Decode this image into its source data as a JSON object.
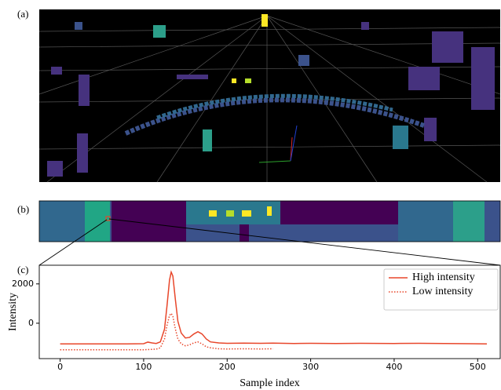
{
  "panels": {
    "a": "(a)",
    "b": "(b)",
    "c": "(c)"
  },
  "chart_data": {
    "type": "line",
    "xlabel": "Sample index",
    "ylabel": "Intensity",
    "x": [
      0,
      20,
      40,
      60,
      80,
      100,
      105,
      110,
      115,
      120,
      125,
      128,
      131,
      133,
      135,
      138,
      141,
      145,
      150,
      155,
      160,
      165,
      170,
      175,
      180,
      190,
      200,
      220,
      240,
      255,
      280,
      300,
      330,
      360,
      400,
      430,
      460,
      490,
      511
    ],
    "series": [
      {
        "name": "High intensity",
        "color": "#e8462a",
        "style": "solid",
        "values": [
          -1050,
          -1050,
          -1050,
          -1050,
          -1050,
          -1040,
          -960,
          -1000,
          -1030,
          -950,
          -300,
          900,
          2200,
          2600,
          2400,
          1200,
          100,
          -500,
          -750,
          -720,
          -550,
          -430,
          -550,
          -800,
          -950,
          -1000,
          -1020,
          -1010,
          -1020,
          -1010,
          -1030,
          -1020,
          -1030,
          -1020,
          -1030,
          -1020,
          -1030,
          -1040,
          -1050
        ]
      },
      {
        "name": "Low intensity",
        "color": "#e8462a",
        "style": "dotted",
        "values": [
          -1350,
          -1350,
          -1350,
          -1350,
          -1350,
          -1350,
          -1340,
          -1330,
          -1320,
          -1250,
          -800,
          -100,
          400,
          500,
          350,
          -300,
          -800,
          -1050,
          -1150,
          -1100,
          -1000,
          -950,
          -1050,
          -1200,
          -1250,
          -1300,
          -1310,
          -1300,
          -1310,
          -1300,
          null,
          null,
          null,
          null,
          null,
          null,
          null,
          null,
          null
        ]
      }
    ],
    "xlim": [
      -25,
      527
    ],
    "ylim": [
      -1800,
      2950
    ],
    "xticks": [
      0,
      100,
      200,
      300,
      400,
      500
    ],
    "yticks": [
      0,
      2000
    ],
    "legend": "upper right"
  }
}
